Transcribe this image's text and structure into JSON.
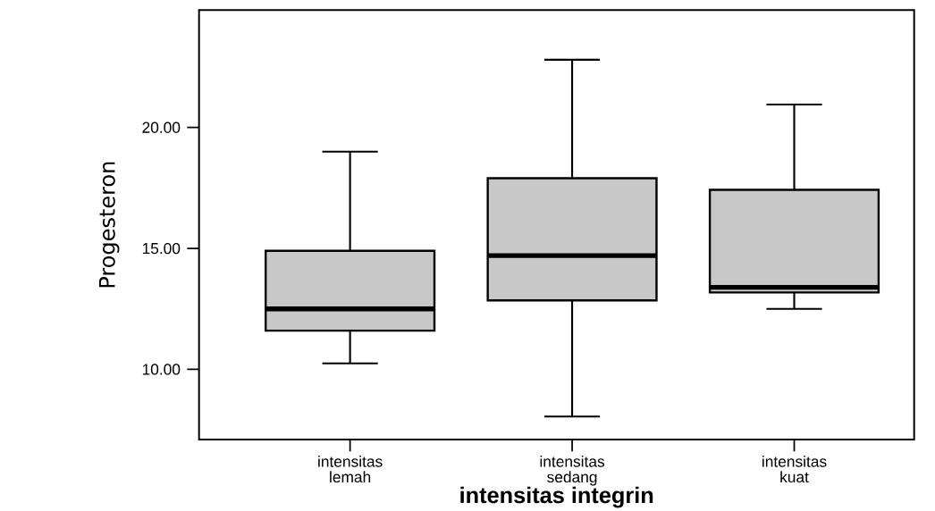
{
  "chart_data": {
    "type": "box",
    "xlabel": "intensitas integrin",
    "ylabel": "Progesteron",
    "categories": [
      "intensitas lemah",
      "intensitas sedang",
      "intensitas kuat"
    ],
    "boxes": [
      {
        "low": 10.25,
        "q1": 11.6,
        "median": 12.5,
        "q3": 14.9,
        "high": 19.0
      },
      {
        "low": 8.05,
        "q1": 12.85,
        "median": 14.7,
        "q3": 17.9,
        "high": 22.8
      },
      {
        "low": 12.5,
        "q1": 13.18,
        "median": 13.39,
        "q3": 17.42,
        "high": 20.95
      }
    ],
    "color": "#c8c8c8",
    "ylim": [
      7.1,
      24.85
    ],
    "yticks": [
      {
        "value": 10,
        "label": "10.00"
      },
      {
        "value": 15,
        "label": "15.00"
      },
      {
        "value": 20,
        "label": "20.00"
      }
    ]
  }
}
